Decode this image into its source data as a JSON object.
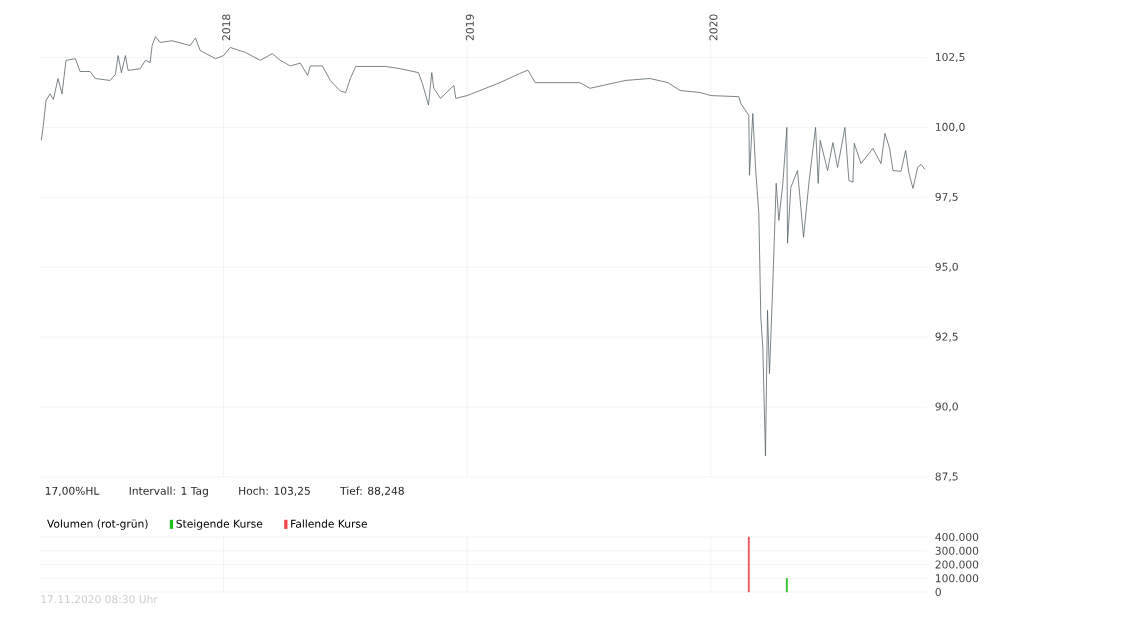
{
  "chart_data": [
    {
      "type": "line",
      "annotations": [
        "17,00%HL",
        "Intervall: 1 Tag",
        "Hoch: 103,25",
        "Tief: 88,248"
      ],
      "xlim": [
        "2017-04-01",
        "2020-11-20"
      ],
      "ylim": [
        87.5,
        104.2
      ],
      "xticks": [
        {
          "value": "2018-01-01",
          "label": "2018"
        },
        {
          "value": "2019-01-01",
          "label": "2019"
        },
        {
          "value": "2020-01-01",
          "label": "2020"
        }
      ],
      "yticks": [
        {
          "value": 87.5,
          "label": "87,5"
        },
        {
          "value": 90,
          "label": "90,0"
        },
        {
          "value": 92.5,
          "label": "92,5"
        },
        {
          "value": 95,
          "label": "95,0"
        },
        {
          "value": 97.5,
          "label": "97,5"
        },
        {
          "value": 100,
          "label": "100,0"
        },
        {
          "value": 102.5,
          "label": "102,5"
        }
      ],
      "grid": true,
      "series": [
        {
          "color": "#5b666b",
          "x": [
            "2017-04-03",
            "2017-04-06",
            "2017-04-10",
            "2017-04-16",
            "2017-04-21",
            "2017-04-28",
            "2017-05-04",
            "2017-05-10",
            "2017-05-24",
            "2017-05-31",
            "2017-06-15",
            "2017-06-23",
            "2017-07-15",
            "2017-07-23",
            "2017-07-27",
            "2017-08-01",
            "2017-08-07",
            "2017-08-11",
            "2017-08-29",
            "2017-09-06",
            "2017-09-13",
            "2017-09-16",
            "2017-09-21",
            "2017-09-28",
            "2017-10-16",
            "2017-11-12",
            "2017-11-20",
            "2017-11-27",
            "2017-12-20",
            "2018-01-01",
            "2018-01-11",
            "2018-02-03",
            "2018-02-25",
            "2018-03-15",
            "2018-03-27",
            "2018-04-11",
            "2018-04-26",
            "2018-05-07",
            "2018-05-11",
            "2018-05-29",
            "2018-06-10",
            "2018-06-25",
            "2018-07-03",
            "2018-07-10",
            "2018-07-18",
            "2018-09-01",
            "2018-09-23",
            "2018-10-20",
            "2018-10-26",
            "2018-11-04",
            "2018-11-09",
            "2018-11-12",
            "2018-11-22",
            "2018-12-12",
            "2018-12-15",
            "2019-01-01",
            "2019-02-19",
            "2019-03-21",
            "2019-04-02",
            "2019-04-13",
            "2019-06-19",
            "2019-07-04",
            "2019-08-26",
            "2019-10-02",
            "2019-10-29",
            "2019-11-16",
            "2019-12-16",
            "2020-01-01",
            "2020-02-12",
            "2020-02-15",
            "2020-02-27",
            "2020-02-28",
            "2020-03-04",
            "2020-03-08",
            "2020-03-13",
            "2020-03-16",
            "2020-03-19",
            "2020-03-23",
            "2020-03-26",
            "2020-03-29",
            "2020-04-03",
            "2020-04-08",
            "2020-04-12",
            "2020-04-18",
            "2020-04-24",
            "2020-04-25",
            "2020-04-30",
            "2020-05-10",
            "2020-05-19",
            "2020-05-27",
            "2020-06-06",
            "2020-06-10",
            "2020-06-13",
            "2020-06-24",
            "2020-07-02",
            "2020-07-09",
            "2020-07-20",
            "2020-07-26",
            "2020-08-01",
            "2020-08-03",
            "2020-08-13",
            "2020-08-31",
            "2020-09-12",
            "2020-09-18",
            "2020-09-25",
            "2020-09-30",
            "2020-10-12",
            "2020-10-19",
            "2020-10-24",
            "2020-10-30",
            "2020-11-06",
            "2020-11-11",
            "2020-11-17"
          ],
          "values": [
            99.54,
            100.07,
            100.96,
            101.2,
            101.0,
            101.75,
            101.2,
            102.4,
            102.46,
            102.0,
            102.0,
            101.75,
            101.68,
            101.9,
            102.57,
            101.96,
            102.57,
            102.04,
            102.1,
            102.4,
            102.32,
            102.93,
            103.25,
            103.04,
            103.1,
            102.93,
            103.2,
            102.75,
            102.46,
            102.57,
            102.86,
            102.68,
            102.4,
            102.64,
            102.4,
            102.2,
            102.3,
            101.86,
            102.2,
            102.2,
            101.68,
            101.3,
            101.25,
            101.75,
            102.18,
            102.18,
            102.1,
            101.96,
            101.57,
            100.8,
            101.96,
            101.4,
            101.04,
            101.5,
            101.04,
            101.14,
            101.6,
            101.93,
            102.05,
            101.6,
            101.6,
            101.4,
            101.68,
            101.75,
            101.6,
            101.32,
            101.25,
            101.14,
            101.1,
            100.86,
            100.43,
            98.29,
            100.5,
            98.6,
            96.93,
            93.2,
            92.14,
            88.25,
            93.46,
            91.2,
            94.43,
            98.0,
            96.68,
            98.0,
            100.0,
            95.86,
            97.86,
            98.46,
            96.07,
            98.0,
            100.0,
            98.0,
            99.54,
            98.46,
            99.46,
            98.57,
            100.0,
            98.1,
            98.04,
            99.43,
            98.71,
            99.25,
            98.71,
            99.79,
            99.25,
            98.46,
            98.43,
            99.18,
            98.36,
            97.82,
            98.57,
            98.68,
            98.5
          ]
        }
      ]
    },
    {
      "type": "bar",
      "legend_title": "Volumen (rot-grün)",
      "legend": "top left",
      "tick_labels": "y",
      "grid": true,
      "annotations": [
        "17.11.2020 08:30 Uhr"
      ],
      "xlim": [
        "2017-04-01",
        "2020-11-20"
      ],
      "ylim": [
        0,
        400000
      ],
      "xticks": [
        {
          "value": "2018-01-01",
          "label": null
        },
        {
          "value": "2019-01-01",
          "label": null
        },
        {
          "value": "2020-01-01",
          "label": null
        }
      ],
      "yticks": [
        {
          "value": 0,
          "label": "0"
        },
        {
          "value": 100000,
          "label": "100.000"
        },
        {
          "value": 200000,
          "label": "200.000"
        },
        {
          "value": 300000,
          "label": "300.000"
        },
        {
          "value": 400000,
          "label": "400.000"
        }
      ],
      "series": [
        {
          "name": "Steigende Kurse",
          "color": "#1fbf1f",
          "x": [
            "2020-04-24"
          ],
          "values": [
            100000
          ]
        },
        {
          "name": "Fallende Kurse",
          "color": "#f0474f",
          "x": [
            "2020-02-27"
          ],
          "values": [
            400000
          ]
        }
      ]
    }
  ]
}
